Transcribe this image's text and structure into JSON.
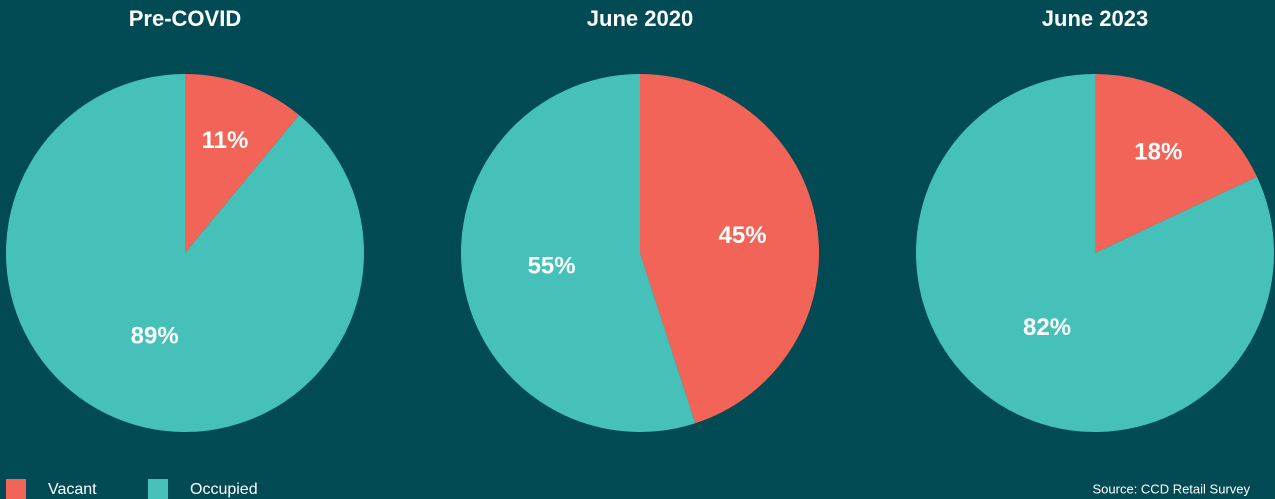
{
  "chart_data": [
    {
      "type": "pie",
      "title": "Pre-COVID",
      "categories": [
        "Vacant",
        "Occupied"
      ],
      "values": [
        11,
        89
      ],
      "value_labels": [
        "11%",
        "89%"
      ],
      "colors": [
        "#f26457",
        "#45c1b9"
      ]
    },
    {
      "type": "pie",
      "title": "June 2020",
      "categories": [
        "Vacant",
        "Occupied"
      ],
      "values": [
        45,
        55
      ],
      "value_labels": [
        "45%",
        "55%"
      ],
      "colors": [
        "#f26457",
        "#45c1b9"
      ]
    },
    {
      "type": "pie",
      "title": "June 2023",
      "categories": [
        "Vacant",
        "Occupied"
      ],
      "values": [
        18,
        82
      ],
      "value_labels": [
        "18%",
        "82%"
      ],
      "colors": [
        "#f26457",
        "#45c1b9"
      ]
    }
  ],
  "source": "Source: CCD Retail Survey"
}
